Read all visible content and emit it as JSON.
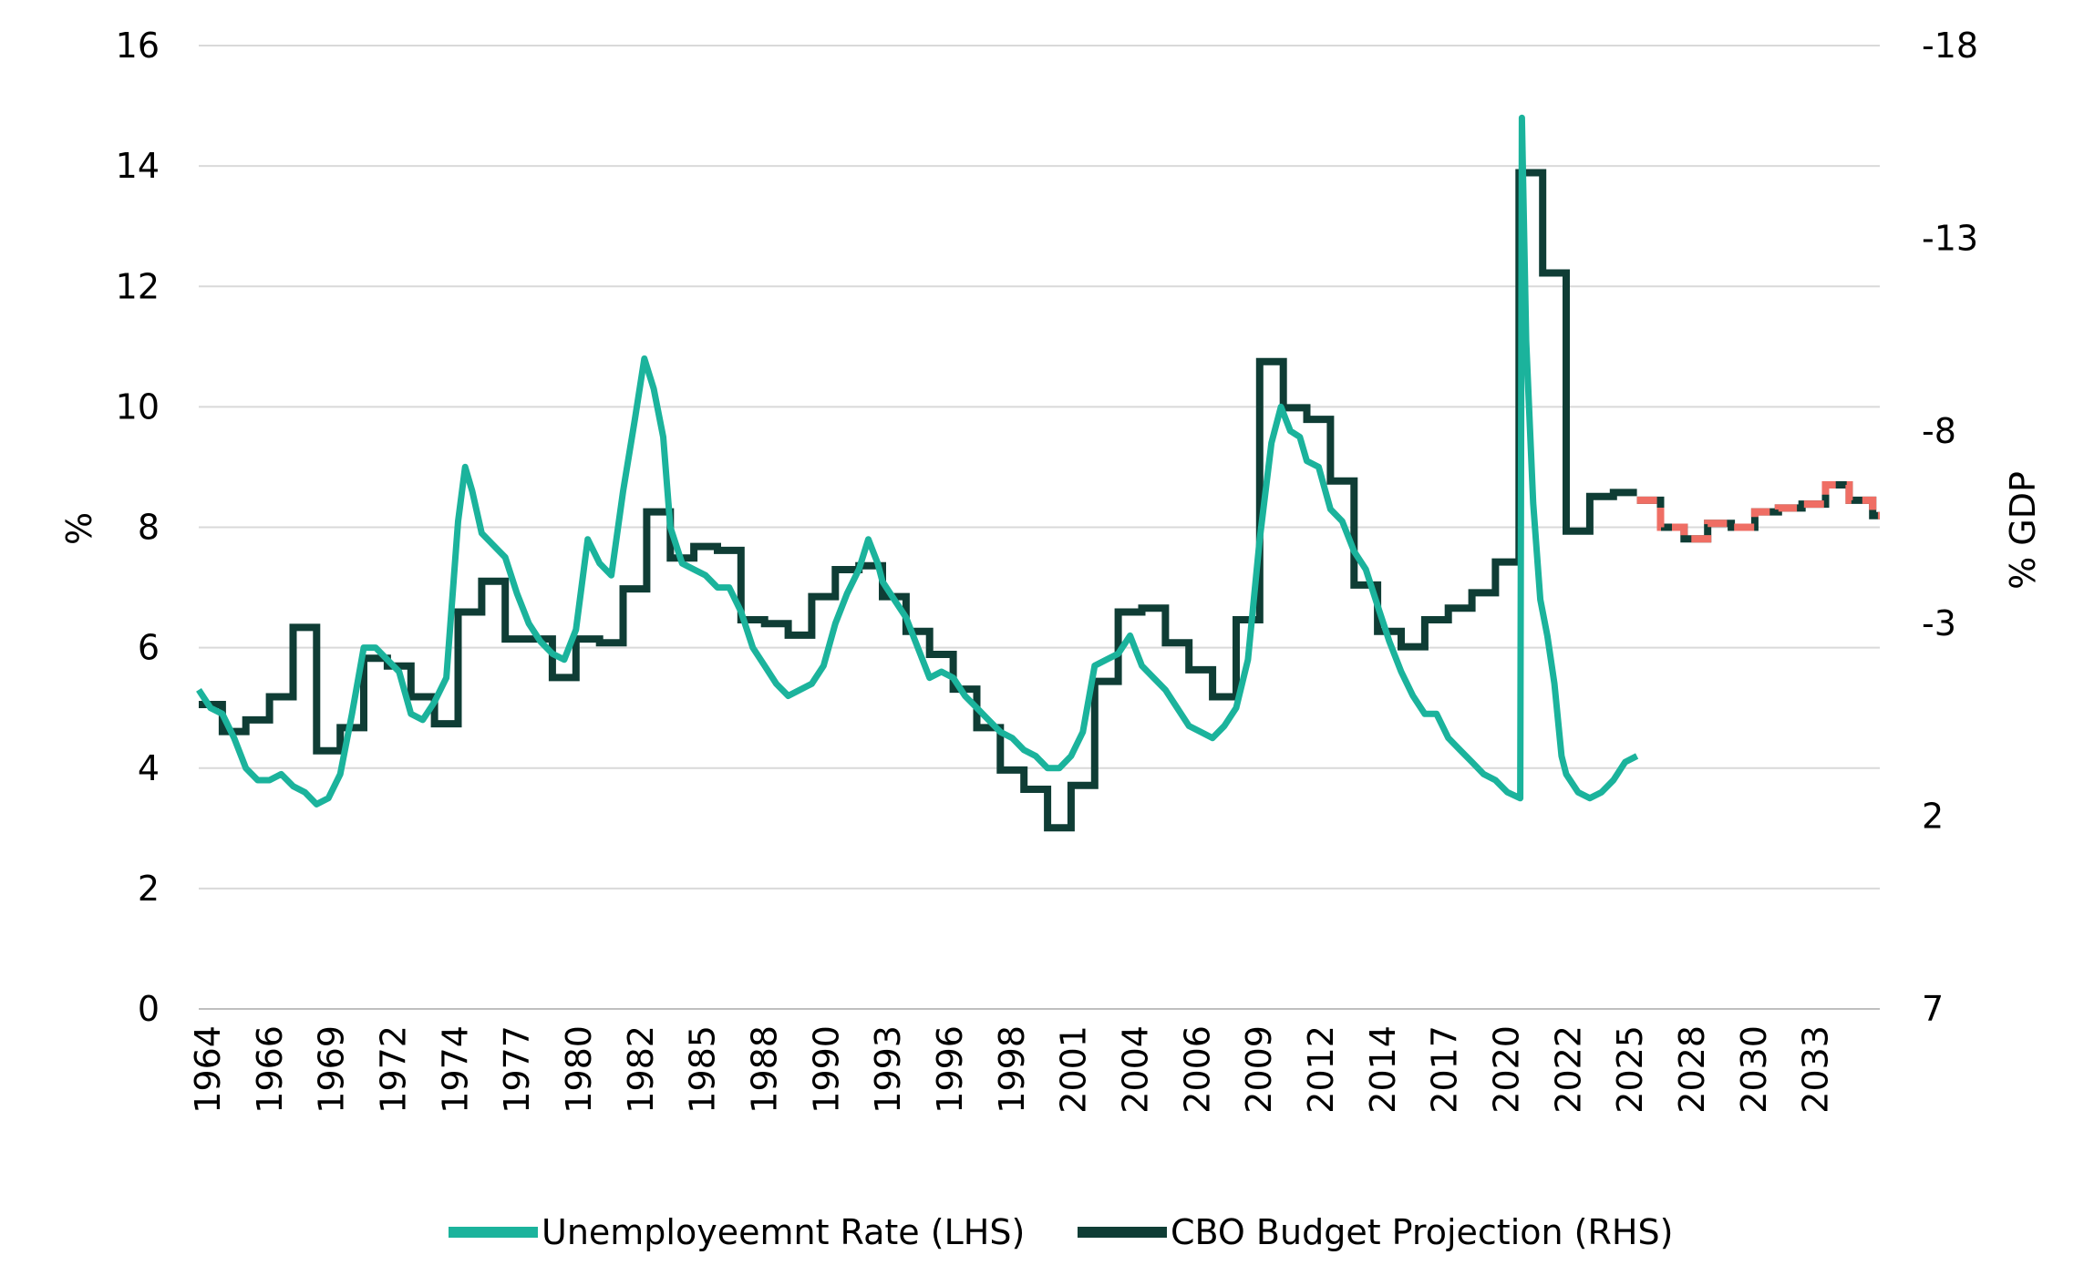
{
  "chart_data": {
    "type": "line",
    "title": "",
    "ylabel_left": "%",
    "ylabel_right": "% GDP",
    "ylim_left": [
      0,
      16
    ],
    "left_ticks": [
      "0",
      "2",
      "4",
      "6",
      "8",
      "10",
      "12",
      "14",
      "16"
    ],
    "ylim_right": [
      7,
      -18
    ],
    "right_ticks": [
      "-18",
      "-13",
      "-8",
      "-3",
      "2",
      "7"
    ],
    "x_tick_labels": [
      "1964",
      "1966",
      "1969",
      "1972",
      "1974",
      "1977",
      "1980",
      "1982",
      "1985",
      "1988",
      "1990",
      "1993",
      "1996",
      "1998",
      "2001",
      "2004",
      "2006",
      "2009",
      "2012",
      "2014",
      "2017",
      "2020",
      "2022",
      "2025",
      "2028",
      "2030",
      "2033"
    ],
    "grid": "horizontal",
    "legend_position": "bottom",
    "series": [
      {
        "name": "Unemployeemnt Rate (LHS)",
        "axis": "left",
        "color": "#1BB39C",
        "points": [
          [
            1964.0,
            5.3
          ],
          [
            1964.5,
            5.0
          ],
          [
            1965.0,
            4.9
          ],
          [
            1965.5,
            4.5
          ],
          [
            1966.0,
            4.0
          ],
          [
            1966.5,
            3.8
          ],
          [
            1967.0,
            3.8
          ],
          [
            1967.5,
            3.9
          ],
          [
            1968.0,
            3.7
          ],
          [
            1968.5,
            3.6
          ],
          [
            1969.0,
            3.4
          ],
          [
            1969.5,
            3.5
          ],
          [
            1970.0,
            3.9
          ],
          [
            1970.5,
            4.9
          ],
          [
            1971.0,
            6.0
          ],
          [
            1971.5,
            6.0
          ],
          [
            1972.0,
            5.8
          ],
          [
            1972.5,
            5.6
          ],
          [
            1973.0,
            4.9
          ],
          [
            1973.5,
            4.8
          ],
          [
            1974.0,
            5.1
          ],
          [
            1974.5,
            5.5
          ],
          [
            1975.0,
            8.1
          ],
          [
            1975.3,
            9.0
          ],
          [
            1975.6,
            8.6
          ],
          [
            1976.0,
            7.9
          ],
          [
            1976.5,
            7.7
          ],
          [
            1977.0,
            7.5
          ],
          [
            1977.5,
            6.9
          ],
          [
            1978.0,
            6.4
          ],
          [
            1978.5,
            6.1
          ],
          [
            1979.0,
            5.9
          ],
          [
            1979.5,
            5.8
          ],
          [
            1980.0,
            6.3
          ],
          [
            1980.5,
            7.8
          ],
          [
            1981.0,
            7.4
          ],
          [
            1981.5,
            7.2
          ],
          [
            1982.0,
            8.6
          ],
          [
            1982.5,
            9.8
          ],
          [
            1982.9,
            10.8
          ],
          [
            1983.3,
            10.3
          ],
          [
            1983.7,
            9.5
          ],
          [
            1984.0,
            8.0
          ],
          [
            1984.5,
            7.4
          ],
          [
            1985.0,
            7.3
          ],
          [
            1985.5,
            7.2
          ],
          [
            1986.0,
            7.0
          ],
          [
            1986.5,
            7.0
          ],
          [
            1987.0,
            6.6
          ],
          [
            1987.5,
            6.0
          ],
          [
            1988.0,
            5.7
          ],
          [
            1988.5,
            5.4
          ],
          [
            1989.0,
            5.2
          ],
          [
            1989.5,
            5.3
          ],
          [
            1990.0,
            5.4
          ],
          [
            1990.5,
            5.7
          ],
          [
            1991.0,
            6.4
          ],
          [
            1991.5,
            6.9
          ],
          [
            1992.0,
            7.3
          ],
          [
            1992.4,
            7.8
          ],
          [
            1992.8,
            7.4
          ],
          [
            1993.0,
            7.1
          ],
          [
            1993.5,
            6.8
          ],
          [
            1994.0,
            6.5
          ],
          [
            1994.5,
            6.0
          ],
          [
            1995.0,
            5.5
          ],
          [
            1995.5,
            5.6
          ],
          [
            1996.0,
            5.5
          ],
          [
            1996.5,
            5.2
          ],
          [
            1997.0,
            5.0
          ],
          [
            1997.5,
            4.8
          ],
          [
            1998.0,
            4.6
          ],
          [
            1998.5,
            4.5
          ],
          [
            1999.0,
            4.3
          ],
          [
            1999.5,
            4.2
          ],
          [
            2000.0,
            4.0
          ],
          [
            2000.5,
            4.0
          ],
          [
            2001.0,
            4.2
          ],
          [
            2001.5,
            4.6
          ],
          [
            2002.0,
            5.7
          ],
          [
            2002.5,
            5.8
          ],
          [
            2003.0,
            5.9
          ],
          [
            2003.5,
            6.2
          ],
          [
            2004.0,
            5.7
          ],
          [
            2004.5,
            5.5
          ],
          [
            2005.0,
            5.3
          ],
          [
            2005.5,
            5.0
          ],
          [
            2006.0,
            4.7
          ],
          [
            2006.5,
            4.6
          ],
          [
            2007.0,
            4.5
          ],
          [
            2007.5,
            4.7
          ],
          [
            2008.0,
            5.0
          ],
          [
            2008.5,
            5.8
          ],
          [
            2009.0,
            7.8
          ],
          [
            2009.5,
            9.4
          ],
          [
            2009.9,
            10.0
          ],
          [
            2010.3,
            9.6
          ],
          [
            2010.7,
            9.5
          ],
          [
            2011.0,
            9.1
          ],
          [
            2011.5,
            9.0
          ],
          [
            2012.0,
            8.3
          ],
          [
            2012.5,
            8.1
          ],
          [
            2013.0,
            7.6
          ],
          [
            2013.5,
            7.3
          ],
          [
            2014.0,
            6.7
          ],
          [
            2014.5,
            6.1
          ],
          [
            2015.0,
            5.6
          ],
          [
            2015.5,
            5.2
          ],
          [
            2016.0,
            4.9
          ],
          [
            2016.5,
            4.9
          ],
          [
            2017.0,
            4.5
          ],
          [
            2017.5,
            4.3
          ],
          [
            2018.0,
            4.1
          ],
          [
            2018.5,
            3.9
          ],
          [
            2019.0,
            3.8
          ],
          [
            2019.5,
            3.6
          ],
          [
            2020.05,
            3.5
          ],
          [
            2020.12,
            14.8
          ],
          [
            2020.3,
            11.1
          ],
          [
            2020.6,
            8.4
          ],
          [
            2020.9,
            6.8
          ],
          [
            2021.2,
            6.2
          ],
          [
            2021.5,
            5.4
          ],
          [
            2021.8,
            4.2
          ],
          [
            2022.0,
            3.9
          ],
          [
            2022.5,
            3.6
          ],
          [
            2023.0,
            3.5
          ],
          [
            2023.5,
            3.6
          ],
          [
            2024.0,
            3.8
          ],
          [
            2024.5,
            4.1
          ],
          [
            2025.0,
            4.2
          ]
        ]
      },
      {
        "name": "CBO Budget Projection (RHS)",
        "axis": "right",
        "color": "#0F3D35",
        "projection_color": "#EF6E64",
        "projection_start": 2025,
        "values": [
          [
            1964,
            -0.9
          ],
          [
            1965,
            -0.2
          ],
          [
            1966,
            -0.5
          ],
          [
            1967,
            -1.1
          ],
          [
            1968,
            -2.9
          ],
          [
            1969,
            0.3
          ],
          [
            1970,
            -0.3
          ],
          [
            1971,
            -2.1
          ],
          [
            1972,
            -1.9
          ],
          [
            1973,
            -1.1
          ],
          [
            1974,
            -0.4
          ],
          [
            1975,
            -3.3
          ],
          [
            1976,
            -4.1
          ],
          [
            1977,
            -2.6
          ],
          [
            1978,
            -2.6
          ],
          [
            1979,
            -1.6
          ],
          [
            1980,
            -2.6
          ],
          [
            1981,
            -2.5
          ],
          [
            1982,
            -3.9
          ],
          [
            1983,
            -5.9
          ],
          [
            1984,
            -4.7
          ],
          [
            1985,
            -5.0
          ],
          [
            1986,
            -4.9
          ],
          [
            1987,
            -3.1
          ],
          [
            1988,
            -3.0
          ],
          [
            1989,
            -2.7
          ],
          [
            1990,
            -3.7
          ],
          [
            1991,
            -4.4
          ],
          [
            1992,
            -4.5
          ],
          [
            1993,
            -3.7
          ],
          [
            1994,
            -2.8
          ],
          [
            1995,
            -2.2
          ],
          [
            1996,
            -1.3
          ],
          [
            1997,
            -0.3
          ],
          [
            1998,
            0.8
          ],
          [
            1999,
            1.3
          ],
          [
            2000,
            2.3
          ],
          [
            2001,
            1.2
          ],
          [
            2002,
            -1.5
          ],
          [
            2003,
            -3.3
          ],
          [
            2004,
            -3.4
          ],
          [
            2005,
            -2.5
          ],
          [
            2006,
            -1.8
          ],
          [
            2007,
            -1.1
          ],
          [
            2008,
            -3.1
          ],
          [
            2009,
            -9.8
          ],
          [
            2010,
            -8.6
          ],
          [
            2011,
            -8.3
          ],
          [
            2012,
            -6.7
          ],
          [
            2013,
            -4.0
          ],
          [
            2014,
            -2.8
          ],
          [
            2015,
            -2.4
          ],
          [
            2016,
            -3.1
          ],
          [
            2017,
            -3.4
          ],
          [
            2018,
            -3.8
          ],
          [
            2019,
            -4.6
          ],
          [
            2020,
            -14.7
          ],
          [
            2021,
            -12.1
          ],
          [
            2022,
            -5.4
          ],
          [
            2023,
            -6.3
          ],
          [
            2024,
            -6.4
          ],
          [
            2025,
            -6.2
          ],
          [
            2026,
            -5.5
          ],
          [
            2027,
            -5.2
          ],
          [
            2028,
            -5.6
          ],
          [
            2029,
            -5.5
          ],
          [
            2030,
            -5.9
          ],
          [
            2031,
            -6.0
          ],
          [
            2032,
            -6.1
          ],
          [
            2033,
            -6.6
          ],
          [
            2034,
            -6.2
          ],
          [
            2035,
            -5.8
          ]
        ]
      }
    ]
  }
}
